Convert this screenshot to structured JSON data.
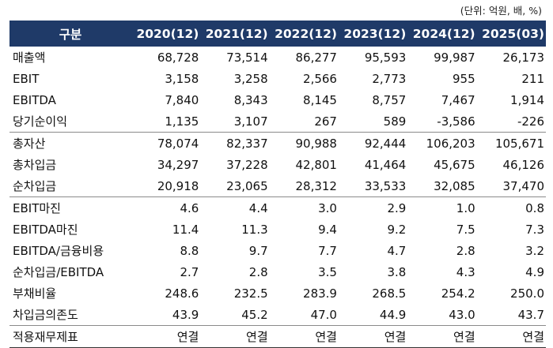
{
  "unit_note": "(단위: 억원, 배, %)",
  "header": {
    "label": "구분",
    "years": [
      "2020(12)",
      "2021(12)",
      "2022(12)",
      "2023(12)",
      "2024(12)",
      "2025(03)"
    ]
  },
  "groups": [
    [
      {
        "label": "매출액",
        "values": [
          "68,728",
          "73,514",
          "86,277",
          "95,593",
          "99,987",
          "26,173"
        ]
      },
      {
        "label": "EBIT",
        "values": [
          "3,158",
          "3,258",
          "2,566",
          "2,773",
          "955",
          "211"
        ]
      },
      {
        "label": "EBITDA",
        "values": [
          "7,840",
          "8,343",
          "8,145",
          "8,757",
          "7,467",
          "1,914"
        ]
      },
      {
        "label": "당기순이익",
        "values": [
          "1,135",
          "3,107",
          "267",
          "589",
          "-3,586",
          "-226"
        ]
      }
    ],
    [
      {
        "label": "총자산",
        "values": [
          "78,074",
          "82,337",
          "90,988",
          "92,444",
          "106,203",
          "105,671"
        ]
      },
      {
        "label": "총차입금",
        "values": [
          "34,297",
          "37,228",
          "42,801",
          "41,464",
          "45,675",
          "46,126"
        ]
      },
      {
        "label": "순차입금",
        "values": [
          "20,918",
          "23,065",
          "28,312",
          "33,533",
          "32,085",
          "37,470"
        ]
      }
    ],
    [
      {
        "label": "EBIT마진",
        "values": [
          "4.6",
          "4.4",
          "3.0",
          "2.9",
          "1.0",
          "0.8"
        ]
      },
      {
        "label": "EBITDA마진",
        "values": [
          "11.4",
          "11.3",
          "9.4",
          "9.2",
          "7.5",
          "7.3"
        ]
      },
      {
        "label": "EBITDA/금융비용",
        "values": [
          "8.8",
          "9.7",
          "7.7",
          "4.7",
          "2.8",
          "3.2"
        ]
      },
      {
        "label": "순차입금/EBITDA",
        "values": [
          "2.7",
          "2.8",
          "3.5",
          "3.8",
          "4.3",
          "4.9"
        ]
      },
      {
        "label": "부채비율",
        "values": [
          "248.6",
          "232.5",
          "283.9",
          "268.5",
          "254.2",
          "250.0"
        ]
      },
      {
        "label": "차입금의존도",
        "values": [
          "43.9",
          "45.2",
          "47.0",
          "44.9",
          "43.0",
          "43.7"
        ]
      }
    ],
    [
      {
        "label": "적용재무제표",
        "values": [
          "연결",
          "연결",
          "연결",
          "연결",
          "연결",
          "연결"
        ]
      }
    ]
  ]
}
